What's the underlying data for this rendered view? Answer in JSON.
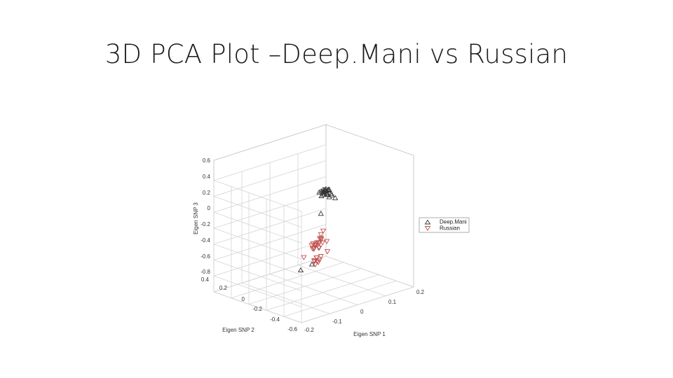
{
  "slide": {
    "title": "3D PCA Plot –Deep.Mani vs Russian"
  },
  "chart_data": {
    "type": "scatter",
    "title": "",
    "xlabel": "Eigen SNP 1",
    "ylabel": "Eigen SNP 2",
    "zlabel": "Eigen SNP 3",
    "xlim": [
      -0.2,
      0.2
    ],
    "ylim": [
      -0.6,
      0.4
    ],
    "zlim": [
      -0.8,
      0.6
    ],
    "x_ticks": [
      "-0.2",
      "-0.1",
      "0",
      "0.1",
      "0.2"
    ],
    "y_ticks": [
      "-0.6",
      "-0.4",
      "-0.2",
      "0",
      "0.2",
      "0.4"
    ],
    "z_ticks": [
      "-0.8",
      "-0.6",
      "-0.4",
      "-0.2",
      "0",
      "0.2",
      "0.4",
      "0.6"
    ],
    "grid": true,
    "legend_position": "right",
    "series": [
      {
        "name": "Deep.Mani",
        "marker": "triangle-up",
        "color": "#333333",
        "points": [
          [
            0.153,
            0.25,
            0.13
          ],
          [
            0.143,
            0.25,
            0.155
          ],
          [
            0.164,
            0.25,
            0.135
          ],
          [
            0.153,
            0.25,
            0.155
          ],
          [
            0.16,
            0.25,
            0.13
          ],
          [
            0.147,
            0.25,
            0.095
          ],
          [
            0.156,
            0.25,
            0.1
          ],
          [
            0.151,
            0.25,
            0.135
          ],
          [
            0.156,
            0.25,
            0.08
          ],
          [
            0.158,
            0.25,
            0.08
          ],
          [
            0.141,
            0.25,
            0.125
          ],
          [
            0.142,
            0.25,
            0.1
          ],
          [
            0.172,
            0.25,
            0.075
          ],
          [
            0.161,
            0.25,
            0.135
          ],
          [
            0.165,
            0.25,
            0.04
          ],
          [
            0.148,
            0.25,
            0.15
          ],
          [
            0.145,
            0.25,
            0.125
          ],
          [
            0.137,
            0.25,
            0.085
          ],
          [
            0.157,
            0.25,
            0.095
          ],
          [
            0.136,
            0.25,
            0.145
          ],
          [
            0.129,
            0.25,
            0.14
          ],
          [
            0.173,
            0.25,
            0.055
          ],
          [
            0.164,
            0.25,
            0.135
          ],
          [
            0.186,
            0.25,
            0.005
          ],
          [
            0.135,
            0.25,
            -0.135
          ],
          [
            0.103,
            0.25,
            -0.735
          ],
          [
            0.063,
            0.25,
            -0.765
          ]
        ]
      },
      {
        "name": "Russian",
        "marker": "triangle-down",
        "color": "#c0504d",
        "points": [
          [
            -0.02,
            -0.15,
            -0.245
          ],
          [
            0.033,
            -0.15,
            -0.34
          ],
          [
            -0.01,
            -0.15,
            -0.195
          ],
          [
            0.006,
            -0.15,
            -0.145
          ],
          [
            -0.005,
            -0.15,
            -0.375
          ],
          [
            0.004,
            -0.15,
            -0.2
          ],
          [
            -0.003,
            -0.15,
            -0.425
          ],
          [
            0.016,
            -0.15,
            -0.21
          ],
          [
            -0.023,
            -0.15,
            -0.2
          ],
          [
            -0.018,
            -0.15,
            -0.185
          ],
          [
            -0.015,
            -0.15,
            -0.245
          ],
          [
            0.011,
            -0.15,
            -0.165
          ],
          [
            -0.01,
            -0.15,
            -0.215
          ],
          [
            0.01,
            -0.15,
            -0.375
          ],
          [
            0.005,
            -0.15,
            -0.415
          ],
          [
            0.011,
            -0.15,
            -0.145
          ],
          [
            0.002,
            -0.15,
            -0.195
          ],
          [
            -0.014,
            -0.15,
            -0.4
          ],
          [
            -0.004,
            -0.15,
            -0.185
          ],
          [
            0.018,
            -0.15,
            -0.065
          ],
          [
            -0.007,
            -0.15,
            -0.21
          ],
          [
            0.001,
            -0.15,
            -0.44
          ],
          [
            -0.006,
            -0.15,
            -0.375
          ],
          [
            0.004,
            -0.15,
            -0.26
          ],
          [
            -0.01,
            -0.15,
            -0.455
          ],
          [
            -0.051,
            -0.15,
            -0.32
          ],
          [
            -0.015,
            -0.15,
            -0.255
          ],
          [
            -0.013,
            -0.15,
            -0.41
          ],
          [
            0.002,
            -0.15,
            -0.26
          ],
          [
            0.031,
            -0.15,
            -0.21
          ],
          [
            0.01,
            -0.15,
            -0.1
          ]
        ]
      }
    ]
  }
}
